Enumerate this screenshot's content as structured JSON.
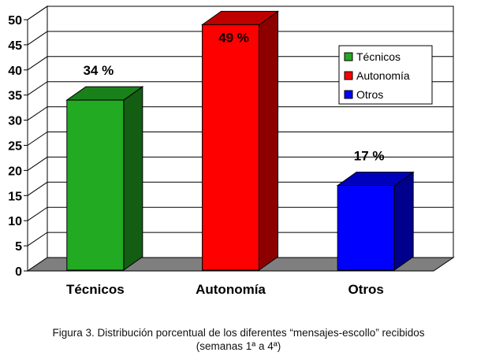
{
  "chart_data": {
    "type": "bar",
    "categories": [
      "Técnicos",
      "Autonomía",
      "Otros"
    ],
    "values": [
      34,
      49,
      17
    ],
    "value_labels": [
      "34 %",
      "49 %",
      "17 %"
    ],
    "colors": [
      "#22aa22",
      "#ff0000",
      "#0000ff"
    ],
    "ylim": [
      0,
      50
    ],
    "yticks": [
      "0",
      "5",
      "10",
      "15",
      "20",
      "25",
      "30",
      "35",
      "40",
      "45",
      "50"
    ],
    "grid": true,
    "legend_position": "top-right",
    "legend": [
      "Técnicos",
      "Autonomía",
      "Otros"
    ],
    "caption_line1": "Figura 3. Distribución porcentual de los diferentes “mensajes-escollo” recibidos",
    "caption_line2": "(semanas 1ª a 4ª)"
  }
}
